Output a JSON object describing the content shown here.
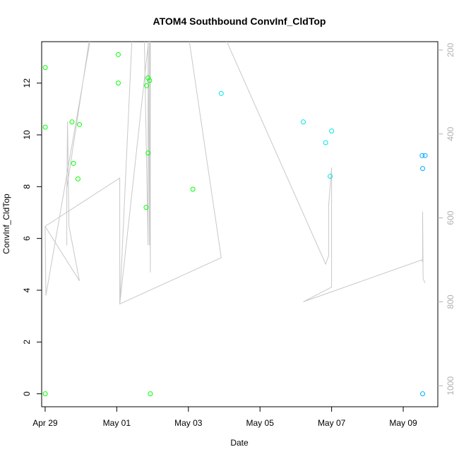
{
  "chart_data": {
    "type": "scatter",
    "title": "ATOM4 Southbound ConvInf_CldTop",
    "xlabel": "Date",
    "ylabel": "ConvInf_CldTop",
    "xlim": [
      "2023-04-28T21:40",
      "2023-05-09T23:10"
    ],
    "ylim": [
      -0.5,
      13.6
    ],
    "x_ticks": [
      {
        "date": "2023-04-29",
        "label": "Apr 29"
      },
      {
        "date": "2023-05-01",
        "label": "May 01"
      },
      {
        "date": "2023-05-03",
        "label": "May 03"
      },
      {
        "date": "2023-05-05",
        "label": "May 05"
      },
      {
        "date": "2023-05-07",
        "label": "May 07"
      },
      {
        "date": "2023-05-09",
        "label": "May 09"
      }
    ],
    "y_ticks": [
      0,
      2,
      4,
      6,
      8,
      10,
      12
    ],
    "right_axis": {
      "ylim": [
        1050,
        180
      ],
      "reversed": true,
      "ticks": [
        200,
        400,
        600,
        800,
        1000
      ],
      "color": "#b0b0b0"
    },
    "grid": false,
    "legend": "none",
    "series": [
      {
        "color": "#00ff00",
        "marker": "open-circle",
        "points": [
          {
            "x": "2023-04-29T00:05",
            "y": 12.6
          },
          {
            "x": "2023-04-29T00:05",
            "y": 10.3
          },
          {
            "x": "2023-04-29T00:05",
            "y": 0.0
          },
          {
            "x": "2023-04-29T18:00",
            "y": 10.5
          },
          {
            "x": "2023-04-29T19:00",
            "y": 8.9
          },
          {
            "x": "2023-04-29T22:00",
            "y": 8.3
          },
          {
            "x": "2023-04-29T23:00",
            "y": 10.4
          },
          {
            "x": "2023-05-01T01:00",
            "y": 13.1
          },
          {
            "x": "2023-05-01T01:00",
            "y": 12.0
          },
          {
            "x": "2023-05-01T19:40",
            "y": 7.2
          },
          {
            "x": "2023-05-01T20:00",
            "y": 11.9
          },
          {
            "x": "2023-05-01T21:00",
            "y": 12.2
          },
          {
            "x": "2023-05-01T21:00",
            "y": 9.3
          },
          {
            "x": "2023-05-01T22:00",
            "y": 12.1
          },
          {
            "x": "2023-05-01T22:30",
            "y": 0.0
          },
          {
            "x": "2023-05-03T03:00",
            "y": 7.9
          }
        ]
      },
      {
        "color": "#00e5e5",
        "marker": "open-circle",
        "points": [
          {
            "x": "2023-05-03T22:00",
            "y": 11.6
          },
          {
            "x": "2023-05-06T05:00",
            "y": 10.5
          },
          {
            "x": "2023-05-06T20:00",
            "y": 9.7
          },
          {
            "x": "2023-05-06T23:00",
            "y": 8.4
          },
          {
            "x": "2023-05-07T00:00",
            "y": 10.15
          }
        ]
      },
      {
        "color": "#00aaff",
        "marker": "open-circle",
        "points": [
          {
            "x": "2023-05-09T12:40",
            "y": 9.2
          },
          {
            "x": "2023-05-09T13:00",
            "y": 8.7
          },
          {
            "x": "2023-05-09T13:00",
            "y": 0.0
          },
          {
            "x": "2023-05-09T14:40",
            "y": 9.2
          }
        ]
      }
    ],
    "line_series": {
      "axis": "right",
      "color": "#c8c8c8",
      "points": [
        {
          "x": "2023-04-29T00:00",
          "y": 620
        },
        {
          "x": "2023-04-29T00:30",
          "y": 785
        },
        {
          "x": "2023-04-30T08:00",
          "y": 140
        },
        {
          "x": "2023-04-30T08:00",
          "y": 120
        },
        {
          "x": "2023-04-29T14:30",
          "y": 530
        },
        {
          "x": "2023-04-29T14:30",
          "y": 665
        },
        {
          "x": "2023-04-29T14:30",
          "y": 550
        },
        {
          "x": "2023-04-29T15:00",
          "y": 370
        },
        {
          "x": "2023-04-29T16:00",
          "y": 620
        },
        {
          "x": "2023-04-29T23:00",
          "y": 750
        },
        {
          "x": "2023-04-29T00:00",
          "y": 620
        },
        {
          "x": "2023-04-29T00:00",
          "y": 620
        },
        {
          "x": "2023-05-01T02:00",
          "y": 505
        },
        {
          "x": "2023-05-01T02:00",
          "y": 805
        },
        {
          "x": "2023-05-01T11:00",
          "y": 110
        },
        {
          "x": "2023-05-01T18:00",
          "y": 80
        },
        {
          "x": "2023-05-01T21:00",
          "y": 665
        },
        {
          "x": "2023-05-01T21:00",
          "y": 140
        },
        {
          "x": "2023-05-01T22:00",
          "y": 665
        },
        {
          "x": "2023-05-01T22:00",
          "y": 140
        },
        {
          "x": "2023-05-01T22:30",
          "y": 730
        },
        {
          "x": "2023-05-01T22:30",
          "y": 140
        },
        {
          "x": "2023-05-01T22:30",
          "y": 140
        },
        {
          "x": "2023-05-01T02:00",
          "y": 805
        },
        {
          "x": "2023-05-03T22:00",
          "y": 695
        },
        {
          "x": "2023-05-02T23:00",
          "y": 140
        },
        {
          "x": "2023-05-02T23:00",
          "y": 140
        },
        {
          "x": "2023-05-03T22:00",
          "y": 150
        },
        {
          "x": "2023-05-06T20:00",
          "y": 710
        },
        {
          "x": "2023-05-06T22:00",
          "y": 690
        },
        {
          "x": "2023-05-06T22:00",
          "y": 570
        },
        {
          "x": "2023-05-07T00:00",
          "y": 480
        },
        {
          "x": "2023-05-07T00:00",
          "y": 765
        },
        {
          "x": "2023-05-06T05:00",
          "y": 800
        },
        {
          "x": "2023-05-09T12:30",
          "y": 700
        },
        {
          "x": "2023-05-09T13:00",
          "y": 705
        },
        {
          "x": "2023-05-09T13:00",
          "y": 585
        },
        {
          "x": "2023-05-09T13:20",
          "y": 745
        },
        {
          "x": "2023-05-09T14:40",
          "y": 755
        }
      ]
    }
  }
}
